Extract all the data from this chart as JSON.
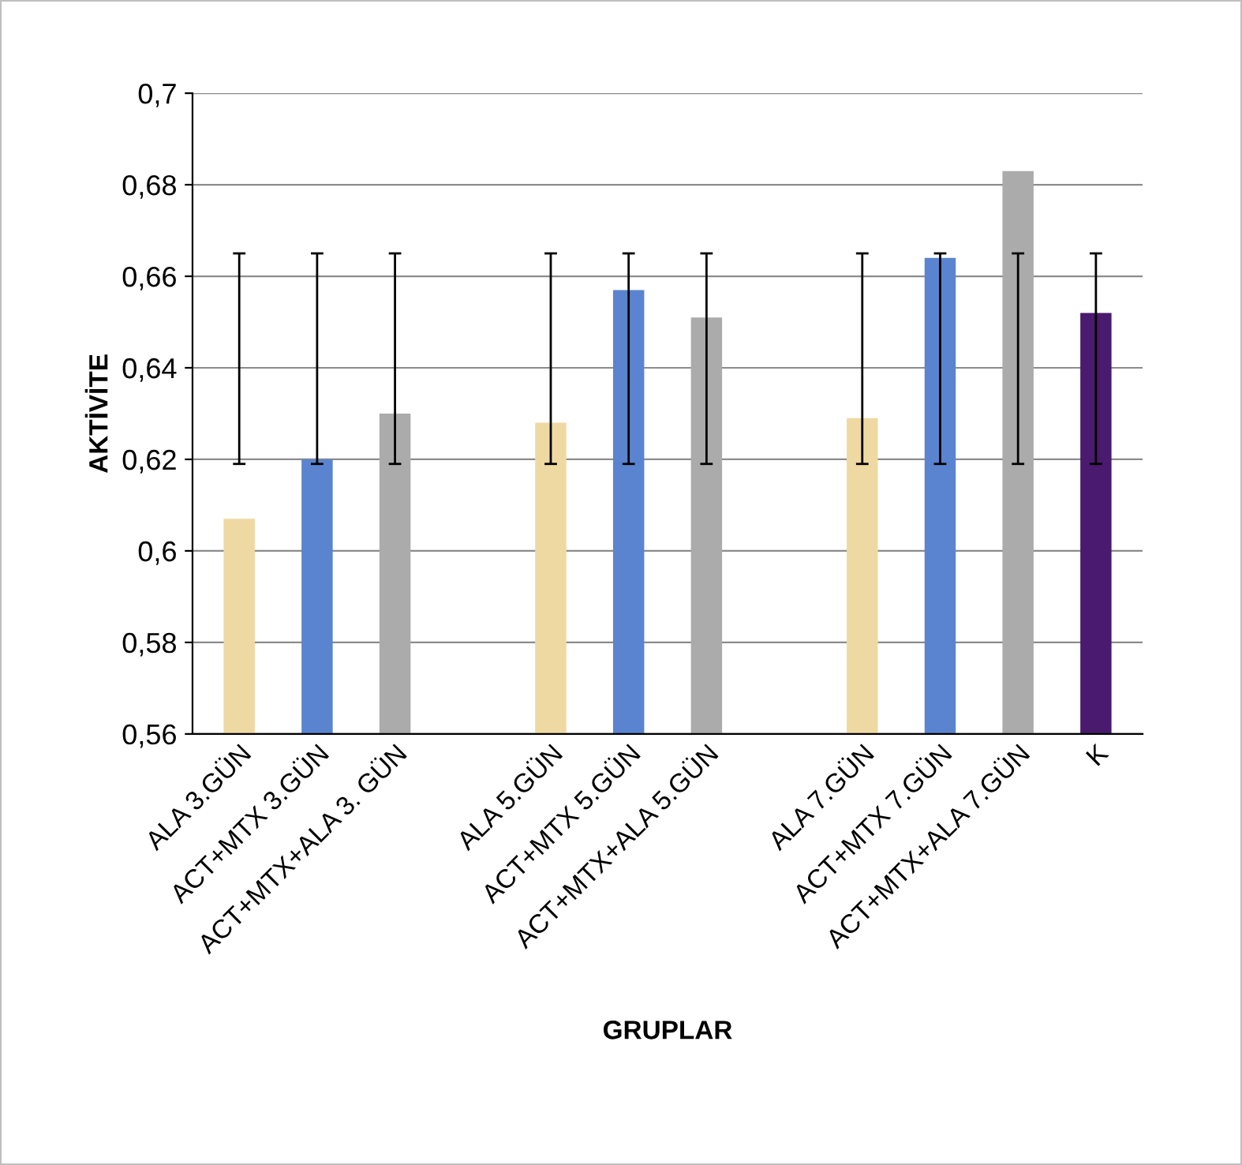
{
  "chart_data": {
    "type": "bar",
    "xlabel": "GRUPLAR",
    "ylabel": "AKTİVİTE",
    "categories": [
      "ALA 3.GÜN",
      "ACT+MTX 3.GÜN",
      "ACT+MTX+ALA 3. GÜN",
      null,
      "ALA 5.GÜN",
      "ACT+MTX 5.GÜN",
      "ACT+MTX+ALA 5.GÜN",
      null,
      "ALA 7.GÜN",
      "ACT+MTX 7.GÜN",
      "ACT+MTX+ALA 7.GÜN",
      "K"
    ],
    "values": [
      0.607,
      0.62,
      0.63,
      null,
      0.628,
      0.657,
      0.651,
      null,
      0.629,
      0.664,
      0.683,
      0.652
    ],
    "colors": [
      "#efd9a3",
      "#5a84cf",
      "#ababab",
      null,
      "#efd9a3",
      "#5a84cf",
      "#ababab",
      null,
      "#efd9a3",
      "#5a84cf",
      "#ababab",
      "#4a1a6e"
    ],
    "errors": [
      [
        0.619,
        0.665
      ],
      [
        0.619,
        0.665
      ],
      [
        0.619,
        0.665
      ],
      null,
      [
        0.619,
        0.665
      ],
      [
        0.619,
        0.665
      ],
      [
        0.619,
        0.665
      ],
      null,
      [
        0.619,
        0.665
      ],
      [
        0.619,
        0.665
      ],
      [
        0.619,
        0.665
      ],
      [
        0.619,
        0.665
      ]
    ],
    "ylim": [
      0.56,
      0.7
    ],
    "yticks": [
      {
        "value": 0.56,
        "label": "0,56"
      },
      {
        "value": 0.58,
        "label": "0,58"
      },
      {
        "value": 0.6,
        "label": "0,6"
      },
      {
        "value": 0.62,
        "label": "0,62"
      },
      {
        "value": 0.64,
        "label": "0,64"
      },
      {
        "value": 0.66,
        "label": "0,66"
      },
      {
        "value": 0.68,
        "label": "0,68"
      },
      {
        "value": 0.7,
        "label": "0,7"
      }
    ],
    "grid": "y",
    "legend": false
  }
}
